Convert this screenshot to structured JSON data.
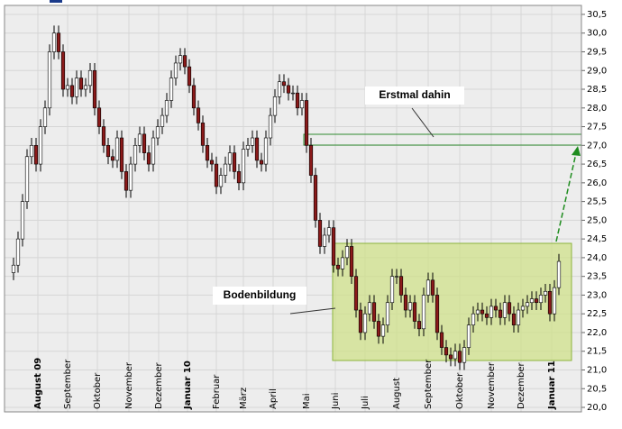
{
  "chart_data": {
    "type": "candlestick",
    "x": [
      0,
      1,
      2,
      3,
      4,
      5,
      6,
      7,
      8,
      9,
      10,
      11,
      12,
      13,
      14,
      15,
      16,
      17,
      18,
      19,
      20,
      21,
      22,
      23,
      24,
      25,
      26,
      27,
      28,
      29,
      30,
      31,
      32,
      33,
      34,
      35,
      36,
      37,
      38,
      39,
      40,
      41,
      42,
      43,
      44,
      45,
      46,
      47,
      48,
      49,
      50,
      51,
      52,
      53,
      54,
      55,
      56,
      57,
      58,
      59,
      60,
      61,
      62,
      63,
      64,
      65,
      66,
      67,
      68,
      69,
      70,
      71,
      72,
      73,
      74,
      75,
      76,
      77,
      78,
      79,
      80,
      81,
      82,
      83,
      84,
      85,
      86,
      87,
      88,
      89,
      90,
      91,
      92,
      93,
      94,
      95,
      96,
      97,
      98,
      99,
      100,
      101,
      102,
      103,
      104,
      105,
      106,
      107,
      108,
      109,
      110,
      111,
      112,
      113,
      114,
      115,
      116,
      117,
      118,
      119,
      120,
      121
    ],
    "open": [
      23.6,
      23.8,
      24.5,
      25.5,
      26.7,
      27.0,
      26.5,
      27.5,
      28.0,
      29.5,
      30.0,
      29.5,
      28.5,
      28.6,
      28.3,
      28.8,
      28.5,
      28.6,
      29.0,
      28.0,
      27.5,
      27.0,
      26.7,
      26.6,
      27.2,
      26.3,
      25.8,
      26.5,
      27.0,
      27.3,
      26.8,
      26.5,
      27.2,
      27.5,
      27.8,
      28.2,
      28.8,
      29.2,
      29.4,
      29.1,
      28.6,
      28.0,
      27.6,
      27.0,
      26.6,
      26.5,
      25.9,
      26.2,
      26.5,
      26.8,
      26.3,
      26.0,
      26.9,
      27.0,
      27.2,
      26.6,
      26.5,
      27.2,
      27.8,
      28.3,
      28.7,
      28.6,
      28.4,
      28.4,
      28.0,
      28.2,
      27.0,
      26.2,
      25.0,
      24.3,
      24.6,
      24.8,
      23.8,
      23.7,
      24.0,
      24.3,
      23.5,
      22.6,
      22.0,
      22.5,
      22.8,
      22.3,
      21.9,
      22.2,
      22.8,
      23.5,
      23.5,
      23.0,
      22.6,
      22.8,
      22.3,
      22.1,
      23.0,
      23.4,
      23.0,
      22.0,
      21.6,
      21.4,
      21.3,
      21.5,
      21.2,
      21.6,
      22.2,
      22.5,
      22.6,
      22.5,
      22.4,
      22.7,
      22.6,
      22.4,
      22.8,
      22.5,
      22.2,
      22.6,
      22.7,
      22.8,
      22.9,
      22.8,
      23.0,
      23.1,
      22.5,
      23.2
    ],
    "high": [
      24.0,
      24.7,
      25.7,
      26.9,
      27.2,
      27.2,
      27.7,
      28.2,
      29.7,
      30.2,
      30.2,
      29.7,
      28.8,
      28.8,
      29.0,
      29.0,
      28.8,
      29.2,
      29.2,
      28.2,
      27.7,
      27.2,
      26.9,
      27.4,
      27.4,
      26.5,
      26.7,
      27.2,
      27.5,
      27.5,
      27.0,
      27.4,
      27.7,
      28.0,
      28.4,
      29.0,
      29.4,
      29.6,
      29.6,
      29.3,
      28.8,
      28.2,
      27.8,
      27.2,
      26.8,
      26.7,
      26.4,
      26.7,
      27.0,
      27.0,
      26.5,
      27.1,
      27.2,
      27.4,
      27.4,
      26.8,
      27.4,
      28.0,
      28.5,
      28.9,
      28.9,
      28.8,
      28.6,
      28.6,
      28.4,
      28.4,
      27.2,
      26.4,
      25.2,
      24.8,
      25.0,
      25.0,
      24.0,
      24.2,
      24.5,
      24.5,
      23.7,
      22.8,
      22.7,
      23.0,
      23.0,
      22.5,
      22.4,
      23.0,
      23.7,
      23.7,
      23.7,
      23.2,
      23.0,
      23.0,
      22.5,
      23.2,
      23.6,
      23.6,
      23.2,
      22.2,
      21.8,
      21.6,
      21.7,
      21.7,
      21.8,
      22.4,
      22.7,
      22.8,
      22.8,
      22.7,
      22.9,
      22.9,
      22.8,
      23.0,
      23.0,
      22.7,
      22.8,
      22.9,
      23.0,
      23.1,
      23.1,
      23.2,
      23.3,
      23.3,
      23.4,
      24.1
    ],
    "low": [
      23.4,
      23.6,
      24.3,
      25.3,
      26.5,
      26.3,
      26.3,
      27.3,
      27.8,
      29.3,
      29.3,
      28.3,
      28.3,
      28.1,
      28.1,
      28.3,
      28.3,
      28.4,
      27.8,
      27.3,
      26.8,
      26.5,
      26.4,
      26.4,
      26.1,
      25.6,
      25.6,
      26.3,
      26.8,
      26.6,
      26.3,
      26.3,
      27.0,
      27.3,
      27.6,
      28.0,
      28.6,
      29.0,
      28.9,
      28.4,
      27.8,
      27.4,
      26.8,
      26.4,
      26.3,
      25.7,
      25.7,
      26.0,
      26.3,
      26.1,
      25.8,
      25.8,
      26.7,
      26.8,
      26.4,
      26.3,
      26.3,
      27.0,
      27.6,
      28.1,
      28.4,
      28.2,
      28.2,
      27.8,
      27.8,
      26.8,
      26.0,
      24.8,
      24.1,
      24.1,
      24.4,
      23.6,
      23.5,
      23.5,
      23.8,
      23.3,
      22.4,
      21.8,
      21.8,
      22.3,
      22.1,
      21.7,
      21.7,
      22.0,
      22.6,
      23.3,
      22.8,
      22.4,
      22.4,
      22.1,
      21.9,
      21.9,
      22.8,
      22.8,
      21.8,
      21.4,
      21.2,
      21.1,
      21.1,
      21.0,
      21.0,
      21.4,
      22.0,
      22.3,
      22.3,
      22.2,
      22.2,
      22.4,
      22.2,
      22.2,
      22.3,
      22.0,
      22.0,
      22.4,
      22.5,
      22.6,
      22.6,
      22.6,
      22.8,
      22.3,
      22.3,
      23.0
    ],
    "close": [
      23.8,
      24.5,
      25.5,
      26.7,
      27.0,
      26.5,
      27.5,
      28.0,
      29.5,
      30.0,
      29.5,
      28.5,
      28.6,
      28.3,
      28.8,
      28.5,
      28.6,
      29.0,
      28.0,
      27.5,
      27.0,
      26.7,
      26.6,
      27.2,
      26.3,
      25.8,
      26.5,
      27.0,
      27.3,
      26.8,
      26.5,
      27.2,
      27.5,
      27.8,
      28.2,
      28.8,
      29.2,
      29.4,
      29.1,
      28.6,
      28.0,
      27.6,
      27.0,
      26.6,
      26.5,
      25.9,
      26.2,
      26.5,
      26.8,
      26.3,
      26.0,
      26.9,
      27.0,
      27.2,
      26.6,
      26.5,
      27.2,
      27.8,
      28.3,
      28.7,
      28.6,
      28.4,
      28.4,
      28.0,
      28.2,
      27.0,
      26.2,
      25.0,
      24.3,
      24.6,
      24.8,
      23.8,
      23.7,
      24.0,
      24.3,
      23.5,
      22.6,
      22.0,
      22.5,
      22.8,
      22.3,
      21.9,
      22.2,
      22.8,
      23.5,
      23.5,
      23.0,
      22.6,
      22.8,
      22.3,
      22.1,
      23.0,
      23.4,
      23.0,
      22.0,
      21.6,
      21.4,
      21.3,
      21.5,
      21.2,
      21.6,
      22.2,
      22.5,
      22.6,
      22.5,
      22.4,
      22.7,
      22.6,
      22.4,
      22.8,
      22.5,
      22.2,
      22.6,
      22.7,
      22.8,
      22.9,
      22.8,
      23.0,
      23.1,
      22.5,
      23.2,
      23.9
    ],
    "up_color": "#ffffff",
    "down_color": "#8b1a1a",
    "xlim": [
      -2,
      126
    ],
    "xticks": [
      {
        "value": 5.4,
        "label": "August 09"
      },
      {
        "value": 12,
        "label": "September"
      },
      {
        "value": 18.6,
        "label": "Oktober"
      },
      {
        "value": 25.6,
        "label": "November"
      },
      {
        "value": 32.2,
        "label": "Dezember"
      },
      {
        "value": 38.6,
        "label": "Januar 10"
      },
      {
        "value": 45,
        "label": "Februar"
      },
      {
        "value": 51,
        "label": "März"
      },
      {
        "value": 57.6,
        "label": "April"
      },
      {
        "value": 65,
        "label": "Mai"
      },
      {
        "value": 71.4,
        "label": "Juni"
      },
      {
        "value": 78,
        "label": "Juli"
      },
      {
        "value": 85,
        "label": "August"
      },
      {
        "value": 92,
        "label": "September"
      },
      {
        "value": 99,
        "label": "Oktober"
      },
      {
        "value": 106,
        "label": "November"
      },
      {
        "value": 112.6,
        "label": "Dezember"
      },
      {
        "value": 119.4,
        "label": "Januar 11"
      }
    ],
    "ylim": [
      19.88,
      30.74
    ],
    "yticks": [
      {
        "value": 20,
        "label": "20,0"
      },
      {
        "value": 20.5,
        "label": "20,5"
      },
      {
        "value": 21,
        "label": "21,0"
      },
      {
        "value": 21.5,
        "label": "21,5"
      },
      {
        "value": 22,
        "label": "22,0"
      },
      {
        "value": 22.5,
        "label": "22,5"
      },
      {
        "value": 23,
        "label": "23,0"
      },
      {
        "value": 23.5,
        "label": "23,5"
      },
      {
        "value": 24,
        "label": "24,0"
      },
      {
        "value": 24.5,
        "label": "24,5"
      },
      {
        "value": 25,
        "label": "25,0"
      },
      {
        "value": 25.5,
        "label": "25,5"
      },
      {
        "value": 26,
        "label": "26,0"
      },
      {
        "value": 26.5,
        "label": "26,5"
      },
      {
        "value": 27,
        "label": "27,0"
      },
      {
        "value": 27.5,
        "label": "27,5"
      },
      {
        "value": 28,
        "label": "28,0"
      },
      {
        "value": 28.5,
        "label": "28,5"
      },
      {
        "value": 29,
        "label": "29,0"
      },
      {
        "value": 29.5,
        "label": "29,5"
      },
      {
        "value": 30,
        "label": "30,0"
      },
      {
        "value": 30.5,
        "label": "30,5"
      }
    ],
    "grid": true,
    "annotations": [
      {
        "text": "Erstmal dahin"
      },
      {
        "text": "Bodenbildung"
      }
    ]
  }
}
